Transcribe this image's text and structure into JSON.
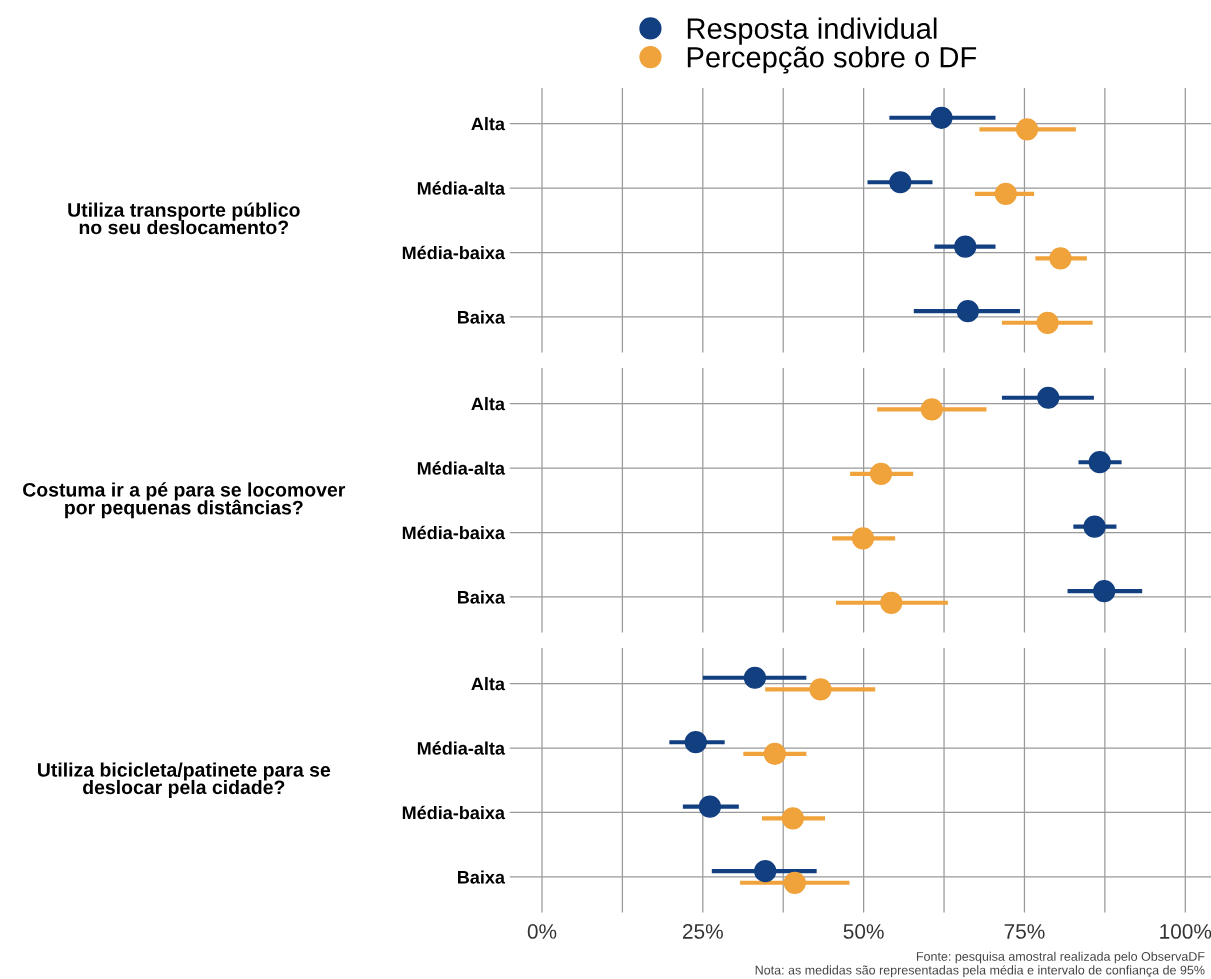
{
  "chart_data": [
    {
      "type": "scatter",
      "orientation": "horizontal",
      "ylabel": "Utiliza transporte público\nno seu deslocamento?",
      "categories": [
        "Alta",
        "Média-alta",
        "Média-baixa",
        "Baixa"
      ],
      "marker": "circle",
      "grid": true,
      "legend": "top",
      "tick_labels": "y",
      "xlim": [
        -5,
        104
      ],
      "series": [
        {
          "name": "Resposta individual",
          "color": "#123f80",
          "values": [
            62.1,
            55.7,
            65.8,
            66.2
          ],
          "errors": [
            [
              54.0,
              70.5
            ],
            [
              50.6,
              60.7
            ],
            [
              61.0,
              70.5
            ],
            [
              57.8,
              74.3
            ]
          ]
        },
        {
          "name": "Percepção sobre o DF",
          "color": "#f0a23b",
          "values": [
            75.4,
            72.1,
            80.6,
            78.6
          ],
          "errors": [
            [
              68.0,
              83.0
            ],
            [
              67.3,
              76.5
            ],
            [
              76.7,
              84.7
            ],
            [
              71.5,
              85.6
            ]
          ]
        }
      ]
    },
    {
      "type": "scatter",
      "orientation": "horizontal",
      "ylabel": "Costuma ir a pé para se locomover\npor pequenas distâncias?",
      "categories": [
        "Alta",
        "Média-alta",
        "Média-baixa",
        "Baixa"
      ],
      "marker": "circle",
      "grid": true,
      "tick_labels": "y",
      "xlim": [
        -5,
        104
      ],
      "series": [
        {
          "color": "#123f80",
          "values": [
            78.7,
            86.7,
            85.9,
            87.4
          ],
          "errors": [
            [
              71.5,
              85.8
            ],
            [
              83.4,
              90.1
            ],
            [
              82.6,
              89.3
            ],
            [
              81.7,
              93.3
            ]
          ]
        },
        {
          "color": "#f0a23b",
          "values": [
            60.6,
            52.7,
            49.9,
            54.3
          ],
          "errors": [
            [
              52.1,
              69.1
            ],
            [
              47.9,
              57.7
            ],
            [
              45.1,
              54.9
            ],
            [
              45.7,
              63.1
            ]
          ]
        }
      ]
    },
    {
      "type": "scatter",
      "orientation": "horizontal",
      "ylabel": "Utiliza bicicleta/patinete para se\ndeslocar pela cidade?",
      "categories": [
        "Alta",
        "Média-alta",
        "Média-baixa",
        "Baixa"
      ],
      "marker": "circle",
      "grid": true,
      "xlim": [
        -5,
        104
      ],
      "xticks": [
        {
          "value": 0,
          "label": "0%"
        },
        {
          "value": 12.5,
          "label": null
        },
        {
          "value": 25,
          "label": "25%"
        },
        {
          "value": 37.5,
          "label": null
        },
        {
          "value": 50,
          "label": "50%"
        },
        {
          "value": 62.5,
          "label": null
        },
        {
          "value": 75,
          "label": "75%"
        },
        {
          "value": 87.5,
          "label": null
        },
        {
          "value": 100,
          "label": "100%"
        }
      ],
      "series": [
        {
          "color": "#123f80",
          "values": [
            33.1,
            23.9,
            26.1,
            34.7
          ],
          "errors": [
            [
              25.0,
              41.1
            ],
            [
              19.8,
              28.4
            ],
            [
              21.9,
              30.6
            ],
            [
              26.4,
              42.7
            ]
          ]
        },
        {
          "color": "#f0a23b",
          "values": [
            43.3,
            36.2,
            39.0,
            39.3
          ],
          "errors": [
            [
              34.7,
              51.8
            ],
            [
              31.3,
              41.1
            ],
            [
              34.2,
              44.0
            ],
            [
              30.8,
              47.8
            ]
          ]
        }
      ],
      "annotations": [
        "Fonte: pesquisa amostral realizada pelo ObservaDF",
        "Nota: as medidas são representadas pela média e intervalo de confiança de 95%"
      ]
    }
  ]
}
